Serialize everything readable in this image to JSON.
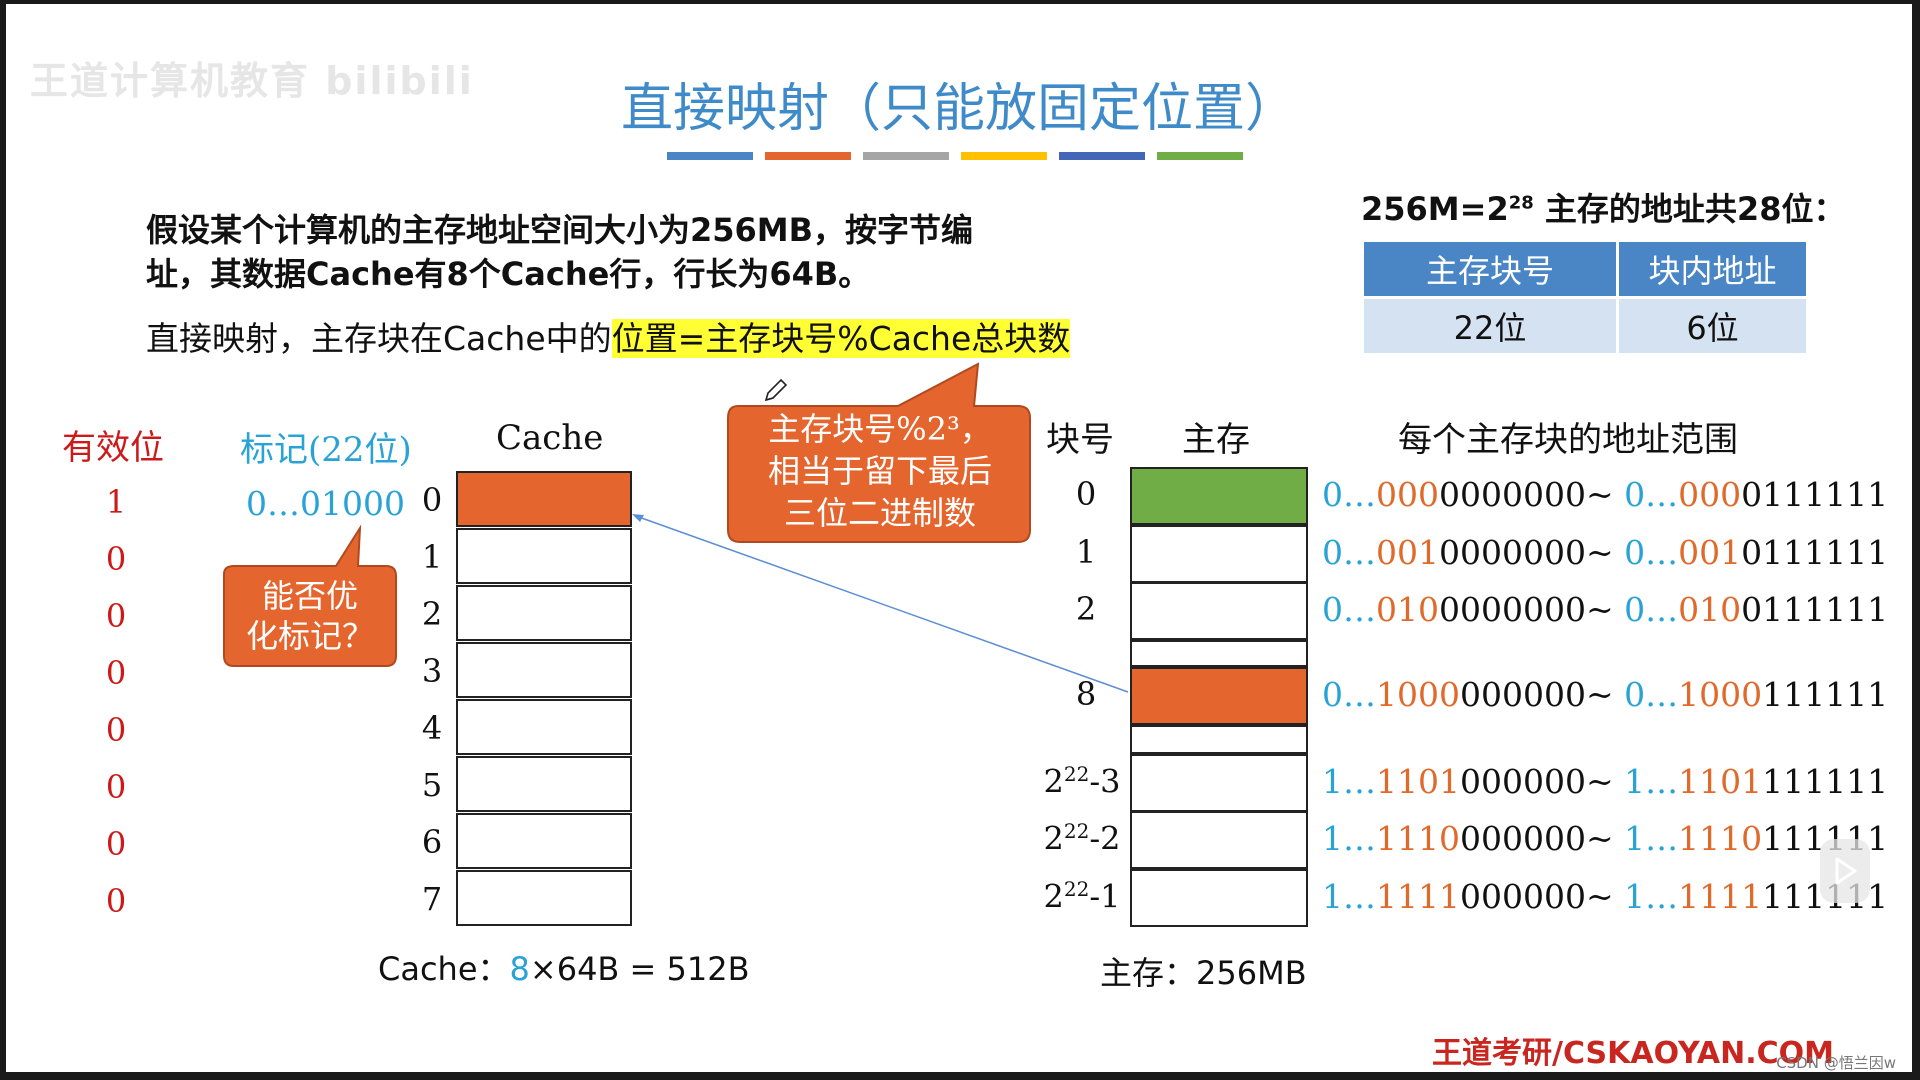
{
  "watermark": "王道计算机教育 bilibili",
  "title": "直接映射（只能放固定位置）",
  "colors": {
    "blue": "#4a86c5",
    "orange": "#e5652e",
    "green": "#70ad47",
    "title": "#3f8bc9",
    "accent_red": "#cc1a1a",
    "tag_blue": "#29a3d6"
  },
  "color_bar": [
    "#4a86c5",
    "#e5652e",
    "#a5a5a5",
    "#ffc000",
    "#4466b8",
    "#70ad47"
  ],
  "problem": {
    "line1": "假设某个计算机的主存地址空间大小为256MB，按字节编",
    "line2": "址，其数据Cache有8个Cache行，行长为64B。"
  },
  "formula": {
    "prefix": "直接映射，主存块在Cache中的",
    "highlight": "位置=主存块号%Cache总块数"
  },
  "address_note": {
    "prefix": "256M=2",
    "exp": "28",
    "suffix": " 主存的地址共28位："
  },
  "address_table": {
    "headers": [
      "主存块号",
      "块内地址"
    ],
    "values": [
      "22位",
      "6位"
    ]
  },
  "cache_section": {
    "valid_header": "有效位",
    "tag_header": "标记(22位)",
    "cache_header": "Cache",
    "valid_bits": [
      "1",
      "0",
      "0",
      "0",
      "0",
      "0",
      "0",
      "0"
    ],
    "line_indices": [
      "0",
      "1",
      "2",
      "3",
      "4",
      "5",
      "6",
      "7"
    ],
    "tag_value": "0…01000",
    "caption": {
      "prefix": "Cache：",
      "highlight": "8",
      "suffix": "×64B = 512B"
    }
  },
  "callouts": {
    "optimize": {
      "line1": "能否优",
      "line2": "化标记？"
    },
    "mod": {
      "line1": "主存块号%2³，",
      "line2": "相当于留下最后",
      "line3": "三位二进制数"
    }
  },
  "memory_section": {
    "block_header": "块号",
    "mem_header": "主存",
    "range_header": "每个主存块的地址范围",
    "caption": "主存：256MB",
    "blocks": [
      {
        "label": "0",
        "exp": "",
        "suffix": "",
        "r1": [
          "0…",
          "000",
          "0000000~ "
        ],
        "r2": [
          "0…",
          "000",
          "0111111"
        ]
      },
      {
        "label": "1",
        "exp": "",
        "suffix": "",
        "r1": [
          "0…",
          "001",
          "0000000~ "
        ],
        "r2": [
          "0…",
          "001",
          "0111111"
        ]
      },
      {
        "label": "2",
        "exp": "",
        "suffix": "",
        "r1": [
          "0…",
          "010",
          "0000000~ "
        ],
        "r2": [
          "0…",
          "010",
          "0111111"
        ]
      },
      {
        "label": "8",
        "exp": "",
        "suffix": "",
        "r1": [
          "0…",
          "1000",
          "000000~ "
        ],
        "r2": [
          "0…",
          "1000",
          "111111"
        ]
      },
      {
        "label": "2",
        "exp": "22",
        "suffix": "-3",
        "r1": [
          "1…",
          "1101",
          "000000~ "
        ],
        "r2": [
          "1…",
          "1101",
          "111111"
        ]
      },
      {
        "label": "2",
        "exp": "22",
        "suffix": "-2",
        "r1": [
          "1…",
          "1110",
          "000000~ "
        ],
        "r2": [
          "1…",
          "1110",
          "111111"
        ]
      },
      {
        "label": "2",
        "exp": "22",
        "suffix": "-1",
        "r1": [
          "1…",
          "1111",
          "000000~ "
        ],
        "r2": [
          "1…",
          "1111",
          "111111"
        ]
      }
    ]
  },
  "brand": "王道考研/CSKAOYAN.COM",
  "csdn": "CSDN @悟兰因w"
}
